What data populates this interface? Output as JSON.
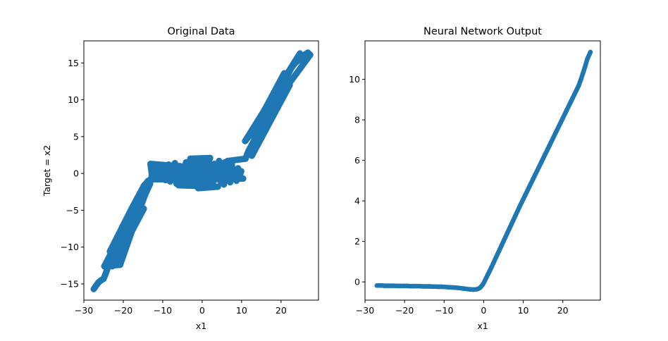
{
  "chart_data": [
    {
      "type": "scatter",
      "title": "Original Data",
      "xlabel": "x1",
      "ylabel": "Target = x2",
      "xlim": [
        -30,
        29.5
      ],
      "ylim": [
        -17.2,
        18
      ],
      "xticks": [
        -30,
        -20,
        -10,
        0,
        10,
        20
      ],
      "yticks": [
        -15,
        -10,
        -5,
        0,
        5,
        10,
        15
      ],
      "grid": false,
      "marker_color": "#1f77b4",
      "series": [
        {
          "points": [
            [
              -27.5,
              -15.7
            ],
            [
              -26.3,
              -14.8
            ],
            [
              -25.6,
              -14.5
            ],
            [
              -25.0,
              -14.3
            ],
            [
              -24.6,
              -13.8
            ],
            [
              -24.2,
              -13.2
            ],
            [
              -23.8,
              -12.6
            ],
            [
              -23.4,
              -12.0
            ],
            [
              -23.0,
              -11.6
            ],
            [
              -22.6,
              -11.0
            ],
            [
              -22.2,
              -10.6
            ],
            [
              -21.8,
              -10.3
            ],
            [
              -21.4,
              -9.8
            ],
            [
              -21.0,
              -9.4
            ],
            [
              -20.6,
              -8.8
            ],
            [
              -20.2,
              -8.4
            ],
            [
              -19.8,
              -8.0
            ],
            [
              -19.4,
              -7.6
            ],
            [
              -19.0,
              -7.1
            ],
            [
              -18.6,
              -6.7
            ],
            [
              -18.2,
              -6.3
            ],
            [
              -17.8,
              -5.9
            ],
            [
              -17.4,
              -5.5
            ],
            [
              -17.0,
              -5.1
            ],
            [
              -16.6,
              -4.8
            ],
            [
              -16.2,
              -4.4
            ],
            [
              -15.8,
              -4.0
            ],
            [
              -15.4,
              -3.6
            ],
            [
              -15.0,
              -3.2
            ],
            [
              -14.6,
              -2.9
            ],
            [
              -14.2,
              -2.4
            ],
            [
              -13.8,
              -2.0
            ],
            [
              -13.2,
              -1.4
            ],
            [
              -22.8,
              -12.6
            ],
            [
              -21.2,
              -11.0
            ],
            [
              -19.6,
              -9.6
            ],
            [
              -18.0,
              -8.0
            ],
            [
              -16.4,
              -6.4
            ],
            [
              -14.8,
              -4.8
            ],
            [
              -23.4,
              -10.6
            ],
            [
              -21.6,
              -8.7
            ],
            [
              -19.9,
              -6.9
            ],
            [
              -18.2,
              -5.1
            ],
            [
              -16.4,
              -3.3
            ],
            [
              -14.8,
              -1.7
            ],
            [
              -13.7,
              -1.0
            ],
            [
              -24.8,
              -12.6
            ],
            [
              -20.8,
              -12.4
            ],
            [
              -17.2,
              -6.9
            ],
            [
              -12.3,
              0.3
            ],
            [
              -11.8,
              -0.4
            ],
            [
              -11.4,
              1.0
            ],
            [
              -11.0,
              -0.7
            ],
            [
              -10.5,
              0.6
            ],
            [
              -10.1,
              -0.3
            ],
            [
              -9.7,
              0.9
            ],
            [
              -9.3,
              -0.9
            ],
            [
              -8.9,
              0.2
            ],
            [
              -8.5,
              1.2
            ],
            [
              -8.1,
              -1.1
            ],
            [
              -7.7,
              0.5
            ],
            [
              -7.3,
              -0.5
            ],
            [
              -6.9,
              1.4
            ],
            [
              -6.5,
              -1.4
            ],
            [
              -6.1,
              0.1
            ],
            [
              -5.7,
              1.0
            ],
            [
              -5.3,
              -1.0
            ],
            [
              -4.9,
              0.4
            ],
            [
              -4.5,
              -1.6
            ],
            [
              -4.1,
              1.5
            ],
            [
              -3.7,
              -0.3
            ],
            [
              -3.3,
              0.8
            ],
            [
              -2.9,
              -1.3
            ],
            [
              -2.5,
              1.8
            ],
            [
              -2.1,
              -0.6
            ],
            [
              -1.7,
              0.3
            ],
            [
              -1.3,
              -1.8
            ],
            [
              -0.9,
              1.2
            ],
            [
              -0.5,
              -0.2
            ],
            [
              -0.1,
              1.9
            ],
            [
              0.3,
              -1.2
            ],
            [
              0.7,
              0.6
            ],
            [
              1.1,
              -1.7
            ],
            [
              1.5,
              1.6
            ],
            [
              1.9,
              -0.4
            ],
            [
              2.3,
              0.9
            ],
            [
              2.7,
              -1.5
            ],
            [
              3.1,
              1.3
            ],
            [
              3.5,
              -0.8
            ],
            [
              3.9,
              0.2
            ],
            [
              4.3,
              1.7
            ],
            [
              4.7,
              -1.1
            ],
            [
              5.1,
              0.5
            ],
            [
              5.5,
              -1.5
            ],
            [
              5.9,
              1.1
            ],
            [
              6.3,
              -0.2
            ],
            [
              6.7,
              0.8
            ],
            [
              7.1,
              -1.2
            ],
            [
              7.5,
              1.3
            ],
            [
              7.9,
              -0.6
            ],
            [
              8.3,
              0.4
            ],
            [
              8.7,
              -1.0
            ],
            [
              9.1,
              0.7
            ],
            [
              9.5,
              -0.3
            ],
            [
              9.9,
              0.3
            ],
            [
              -13.1,
              1.3
            ],
            [
              -12.6,
              -0.8
            ],
            [
              10.4,
              -0.7
            ],
            [
              -3.0,
              2.0
            ],
            [
              2.0,
              2.1
            ],
            [
              -1.0,
              -2.0
            ],
            [
              4.0,
              -1.8
            ],
            [
              -6.0,
              -1.6
            ],
            [
              6.5,
              1.7
            ],
            [
              11.0,
              2.0
            ],
            [
              11.4,
              2.6
            ],
            [
              11.8,
              3.1
            ],
            [
              12.2,
              3.5
            ],
            [
              12.6,
              3.9
            ],
            [
              13.0,
              4.3
            ],
            [
              13.4,
              4.8
            ],
            [
              13.8,
              5.2
            ],
            [
              14.2,
              5.6
            ],
            [
              14.6,
              6.0
            ],
            [
              15.0,
              6.4
            ],
            [
              15.4,
              6.8
            ],
            [
              15.8,
              7.3
            ],
            [
              16.2,
              7.7
            ],
            [
              16.6,
              8.1
            ],
            [
              17.0,
              8.5
            ],
            [
              17.4,
              8.9
            ],
            [
              17.8,
              9.4
            ],
            [
              18.2,
              9.8
            ],
            [
              18.6,
              10.2
            ],
            [
              19.0,
              10.6
            ],
            [
              19.4,
              11.0
            ],
            [
              19.8,
              11.5
            ],
            [
              20.2,
              11.9
            ],
            [
              20.6,
              12.3
            ],
            [
              21.0,
              12.7
            ],
            [
              21.4,
              13.1
            ],
            [
              21.8,
              13.5
            ],
            [
              22.2,
              13.9
            ],
            [
              22.6,
              14.3
            ],
            [
              23.0,
              14.6
            ],
            [
              23.6,
              15.0
            ],
            [
              24.3,
              15.3
            ],
            [
              25.2,
              15.6
            ],
            [
              26.2,
              16.2
            ],
            [
              26.8,
              16.4
            ],
            [
              27.4,
              16.1
            ],
            [
              12.8,
              5.5
            ],
            [
              14.4,
              7.1
            ],
            [
              16.0,
              8.8
            ],
            [
              17.6,
              10.4
            ],
            [
              19.2,
              12.0
            ],
            [
              20.8,
              13.6
            ],
            [
              12.6,
              2.4
            ],
            [
              14.2,
              4.0
            ],
            [
              15.8,
              5.6
            ],
            [
              17.4,
              7.2
            ],
            [
              19.0,
              8.8
            ],
            [
              20.6,
              10.4
            ],
            [
              22.2,
              12.0
            ],
            [
              10.9,
              4.4
            ],
            [
              24.8,
              16.3
            ]
          ]
        }
      ]
    },
    {
      "type": "scatter",
      "title": "Neural Network Output",
      "xlabel": "x1",
      "ylabel": "",
      "xlim": [
        -30,
        29.5
      ],
      "ylim": [
        -0.9,
        11.9
      ],
      "xticks": [
        -30,
        -20,
        -10,
        0,
        10,
        20
      ],
      "yticks": [
        0,
        2,
        4,
        6,
        8,
        10
      ],
      "grid": false,
      "marker_color": "#1f77b4",
      "series": [
        {
          "points": [
            [
              -27.0,
              -0.18
            ],
            [
              -25.8,
              -0.18
            ],
            [
              -25.0,
              -0.19
            ],
            [
              -24.2,
              -0.19
            ],
            [
              -23.4,
              -0.19
            ],
            [
              -22.6,
              -0.19
            ],
            [
              -21.8,
              -0.2
            ],
            [
              -21.0,
              -0.2
            ],
            [
              -20.2,
              -0.2
            ],
            [
              -19.4,
              -0.2
            ],
            [
              -18.6,
              -0.21
            ],
            [
              -17.8,
              -0.21
            ],
            [
              -17.0,
              -0.21
            ],
            [
              -16.2,
              -0.21
            ],
            [
              -15.4,
              -0.22
            ],
            [
              -14.6,
              -0.22
            ],
            [
              -13.8,
              -0.22
            ],
            [
              -13.0,
              -0.23
            ],
            [
              -12.2,
              -0.23
            ],
            [
              -11.4,
              -0.24
            ],
            [
              -10.6,
              -0.24
            ],
            [
              -9.8,
              -0.25
            ],
            [
              -9.0,
              -0.26
            ],
            [
              -8.2,
              -0.27
            ],
            [
              -7.4,
              -0.28
            ],
            [
              -6.6,
              -0.29
            ],
            [
              -5.8,
              -0.31
            ],
            [
              -5.0,
              -0.33
            ],
            [
              -4.2,
              -0.35
            ],
            [
              -3.4,
              -0.37
            ],
            [
              -2.6,
              -0.38
            ],
            [
              -2.0,
              -0.37
            ],
            [
              -1.5,
              -0.35
            ],
            [
              -1.0,
              -0.3
            ],
            [
              -0.6,
              -0.22
            ],
            [
              -0.2,
              -0.12
            ],
            [
              0.2,
              0.02
            ],
            [
              0.6,
              0.18
            ],
            [
              1.0,
              0.34
            ],
            [
              1.5,
              0.53
            ],
            [
              2.0,
              0.74
            ],
            [
              2.5,
              0.95
            ],
            [
              3.0,
              1.16
            ],
            [
              3.5,
              1.37
            ],
            [
              4.0,
              1.58
            ],
            [
              4.5,
              1.79
            ],
            [
              5.0,
              2.0
            ],
            [
              5.5,
              2.21
            ],
            [
              6.0,
              2.42
            ],
            [
              6.5,
              2.63
            ],
            [
              7.0,
              2.84
            ],
            [
              7.5,
              3.05
            ],
            [
              8.0,
              3.26
            ],
            [
              8.5,
              3.47
            ],
            [
              9.0,
              3.68
            ],
            [
              9.5,
              3.88
            ],
            [
              10.0,
              4.08
            ],
            [
              10.5,
              4.28
            ],
            [
              11.0,
              4.48
            ],
            [
              11.5,
              4.68
            ],
            [
              12.0,
              4.88
            ],
            [
              12.5,
              5.08
            ],
            [
              13.0,
              5.28
            ],
            [
              13.5,
              5.48
            ],
            [
              14.0,
              5.68
            ],
            [
              14.5,
              5.88
            ],
            [
              15.0,
              6.08
            ],
            [
              15.5,
              6.28
            ],
            [
              16.0,
              6.48
            ],
            [
              16.5,
              6.68
            ],
            [
              17.0,
              6.88
            ],
            [
              17.5,
              7.08
            ],
            [
              18.0,
              7.28
            ],
            [
              18.5,
              7.48
            ],
            [
              19.0,
              7.68
            ],
            [
              19.5,
              7.88
            ],
            [
              20.0,
              8.08
            ],
            [
              20.5,
              8.28
            ],
            [
              21.0,
              8.48
            ],
            [
              21.5,
              8.68
            ],
            [
              22.0,
              8.88
            ],
            [
              22.5,
              9.08
            ],
            [
              23.0,
              9.28
            ],
            [
              23.5,
              9.48
            ],
            [
              24.0,
              9.68
            ],
            [
              24.6,
              10.0
            ],
            [
              25.1,
              10.3
            ],
            [
              25.6,
              10.6
            ],
            [
              26.2,
              11.0
            ],
            [
              27.0,
              11.35
            ]
          ]
        }
      ]
    }
  ]
}
